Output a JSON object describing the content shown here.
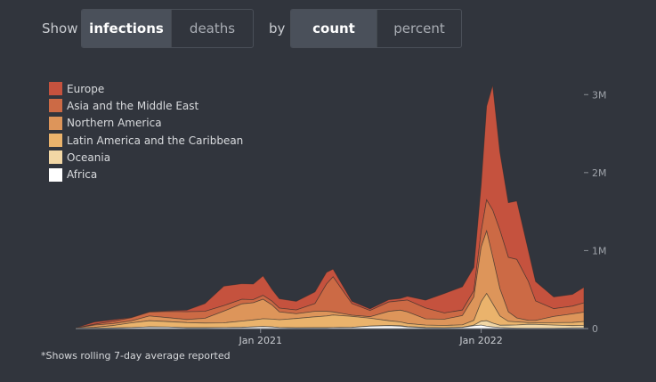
{
  "controls": {
    "show_label": "Show",
    "metric_options": [
      "infections",
      "deaths"
    ],
    "metric_selected": "infections",
    "by_label": "by",
    "mode_options": [
      "count",
      "percent"
    ],
    "mode_selected": "count"
  },
  "footnote": "*Shows rolling 7-day average reported",
  "chart_data": {
    "type": "area",
    "stacked": true,
    "x_dates": [
      "2020-03-01",
      "2020-04-01",
      "2020-05-01",
      "2020-06-01",
      "2020-07-01",
      "2020-08-01",
      "2020-09-01",
      "2020-10-01",
      "2020-11-01",
      "2020-12-01",
      "2020-12-20",
      "2021-01-05",
      "2021-01-20",
      "2021-02-01",
      "2021-03-01",
      "2021-04-01",
      "2021-04-20",
      "2021-05-01",
      "2021-06-01",
      "2021-07-01",
      "2021-08-01",
      "2021-08-20",
      "2021-09-01",
      "2021-10-01",
      "2021-11-01",
      "2021-12-01",
      "2021-12-20",
      "2022-01-01",
      "2022-01-10",
      "2022-01-20",
      "2022-02-01",
      "2022-02-15",
      "2022-03-01",
      "2022-03-20",
      "2022-04-01",
      "2022-05-01",
      "2022-06-01",
      "2022-06-20"
    ],
    "series": [
      {
        "name": "Africa",
        "color": "#ffffff",
        "values": [
          0.001,
          0.004,
          0.007,
          0.012,
          0.02,
          0.018,
          0.01,
          0.01,
          0.012,
          0.015,
          0.02,
          0.025,
          0.02,
          0.012,
          0.008,
          0.01,
          0.01,
          0.012,
          0.015,
          0.03,
          0.035,
          0.03,
          0.02,
          0.01,
          0.008,
          0.015,
          0.035,
          0.045,
          0.03,
          0.02,
          0.012,
          0.008,
          0.006,
          0.005,
          0.004,
          0.005,
          0.008,
          0.01
        ]
      },
      {
        "name": "Oceania",
        "color": "#f2d7a5",
        "values": [
          0.001,
          0.001,
          0.001,
          0.001,
          0.001,
          0.001,
          0.001,
          0.001,
          0.001,
          0.001,
          0.001,
          0.001,
          0.001,
          0.001,
          0.001,
          0.001,
          0.001,
          0.001,
          0.001,
          0.002,
          0.005,
          0.006,
          0.005,
          0.004,
          0.002,
          0.002,
          0.01,
          0.05,
          0.07,
          0.05,
          0.03,
          0.035,
          0.04,
          0.05,
          0.05,
          0.04,
          0.03,
          0.03
        ]
      },
      {
        "name": "Latin America and the Caribbean",
        "color": "#eab36c",
        "values": [
          0.001,
          0.01,
          0.03,
          0.06,
          0.08,
          0.07,
          0.065,
          0.06,
          0.06,
          0.08,
          0.09,
          0.1,
          0.1,
          0.1,
          0.12,
          0.14,
          0.15,
          0.16,
          0.14,
          0.1,
          0.06,
          0.05,
          0.04,
          0.03,
          0.03,
          0.03,
          0.06,
          0.25,
          0.35,
          0.25,
          0.12,
          0.05,
          0.04,
          0.02,
          0.02,
          0.03,
          0.04,
          0.05
        ]
      },
      {
        "name": "Northern America",
        "color": "#dd955a",
        "values": [
          0.002,
          0.03,
          0.025,
          0.025,
          0.06,
          0.05,
          0.04,
          0.06,
          0.15,
          0.22,
          0.22,
          0.25,
          0.18,
          0.1,
          0.06,
          0.07,
          0.06,
          0.04,
          0.015,
          0.02,
          0.12,
          0.15,
          0.15,
          0.08,
          0.08,
          0.12,
          0.3,
          0.7,
          0.8,
          0.6,
          0.35,
          0.12,
          0.05,
          0.03,
          0.03,
          0.08,
          0.11,
          0.12
        ]
      },
      {
        "name": "Asia and the Middle East",
        "color": "#cc6a45",
        "values": [
          0.001,
          0.01,
          0.03,
          0.04,
          0.05,
          0.08,
          0.1,
          0.09,
          0.07,
          0.06,
          0.04,
          0.05,
          0.05,
          0.05,
          0.05,
          0.1,
          0.35,
          0.45,
          0.15,
          0.08,
          0.12,
          0.12,
          0.15,
          0.14,
          0.08,
          0.07,
          0.08,
          0.2,
          0.4,
          0.6,
          0.75,
          0.7,
          0.75,
          0.5,
          0.25,
          0.1,
          0.1,
          0.12
        ]
      },
      {
        "name": "Europe",
        "color": "#c5523e",
        "values": [
          0.002,
          0.03,
          0.02,
          0.005,
          0.005,
          0.01,
          0.02,
          0.1,
          0.25,
          0.2,
          0.2,
          0.25,
          0.15,
          0.12,
          0.11,
          0.15,
          0.15,
          0.1,
          0.03,
          0.02,
          0.03,
          0.03,
          0.05,
          0.1,
          0.25,
          0.3,
          0.3,
          0.6,
          1.2,
          1.6,
          1.0,
          0.7,
          0.75,
          0.4,
          0.25,
          0.15,
          0.15,
          0.2
        ]
      }
    ],
    "x_tick_labels": [
      {
        "date": "2021-01-01",
        "label": "Jan 2021"
      },
      {
        "date": "2022-01-01",
        "label": "Jan 2022"
      }
    ],
    "y_ticks": [
      {
        "value": 0,
        "label": "0"
      },
      {
        "value": 1,
        "label": "1M"
      },
      {
        "value": 2,
        "label": "2M"
      },
      {
        "value": 3,
        "label": "3M"
      }
    ],
    "y_unit": "millions",
    "ylim": [
      0,
      3.3
    ],
    "legend_position": "top-left",
    "grid": false
  }
}
